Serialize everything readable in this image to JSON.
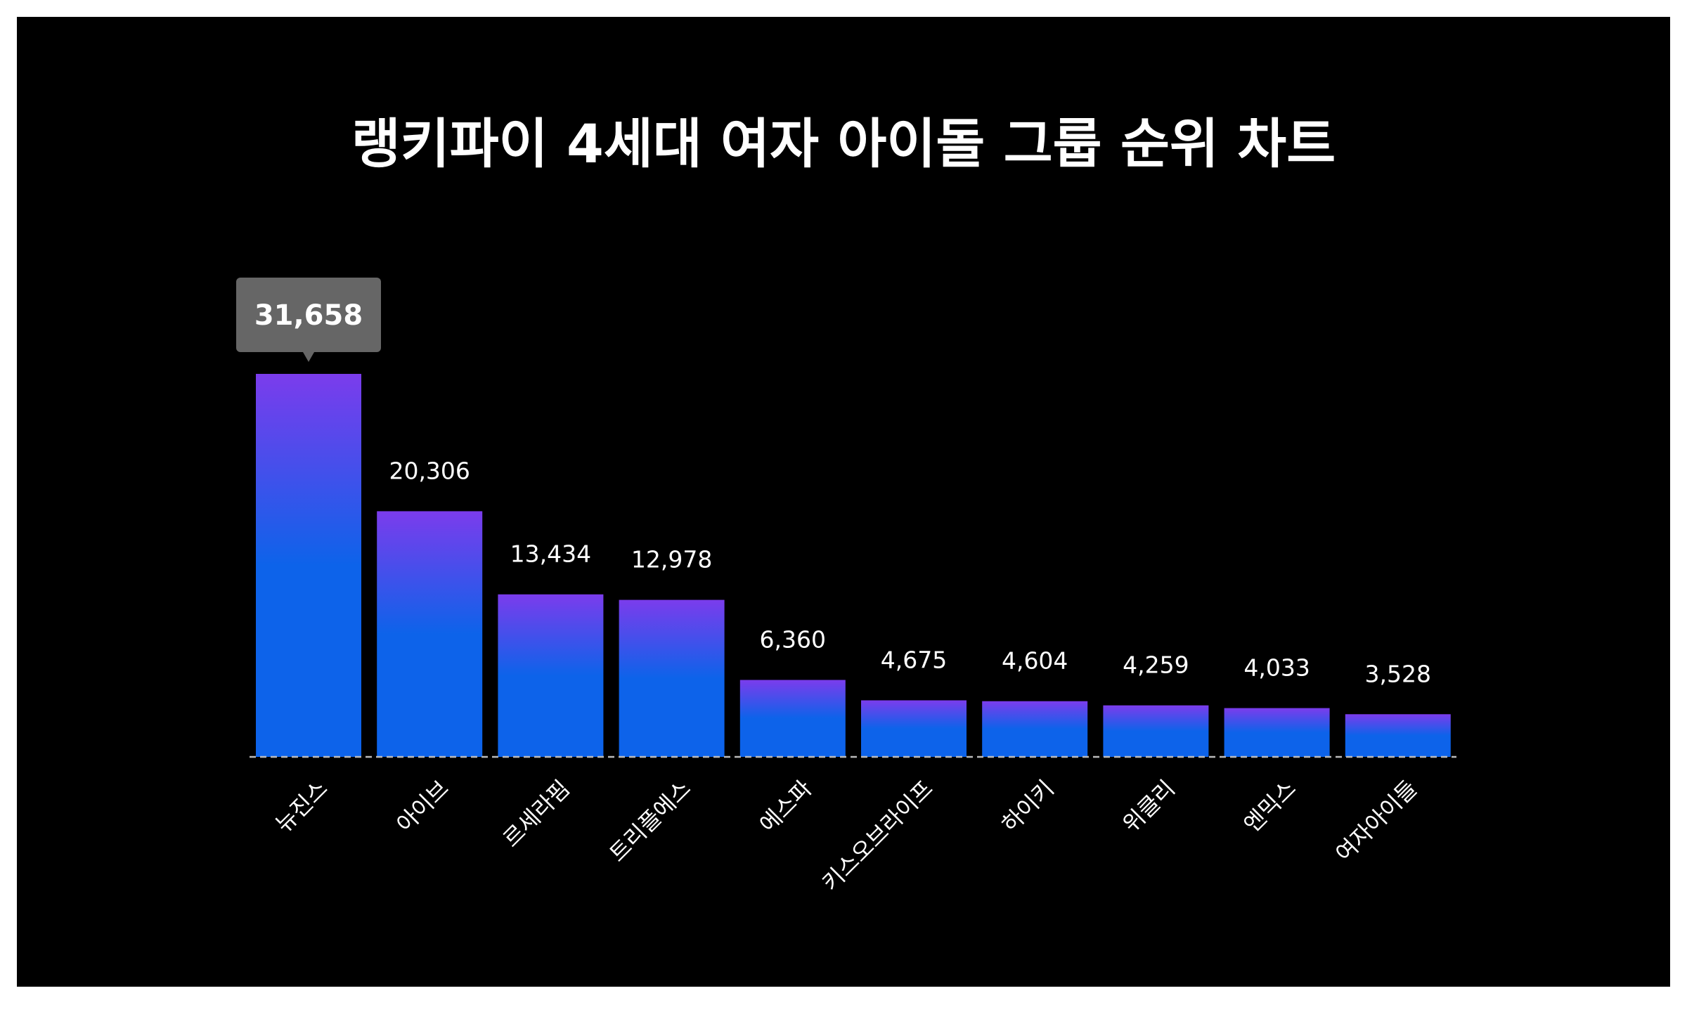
{
  "chart_data": {
    "type": "bar",
    "title": "랭키파이 4세대 여자 아이돌 그룹 순위 차트",
    "categories": [
      "뉴진스",
      "아이브",
      "르세라핌",
      "트리플에스",
      "에스파",
      "키스오브라이프",
      "하이키",
      "위클리",
      "엔믹스",
      "여자아이들"
    ],
    "values": [
      31658,
      20306,
      13434,
      12978,
      6360,
      4675,
      4604,
      4259,
      4033,
      3528
    ],
    "value_labels": [
      "31,658",
      "20,306",
      "13,434",
      "12,978",
      "6,360",
      "4,675",
      "4,604",
      "4,259",
      "4,033",
      "3,528"
    ],
    "highlighted_index": 0,
    "xlabel": "",
    "ylabel": "",
    "ylim": [
      0,
      31658
    ],
    "grid": false,
    "colors": {
      "background": "#000000",
      "bar_top": "#7b3cec",
      "bar_bottom": "#0d63ea",
      "tooltip": "#666666",
      "baseline": "#bbbbbb",
      "text": "#ffffff"
    }
  }
}
